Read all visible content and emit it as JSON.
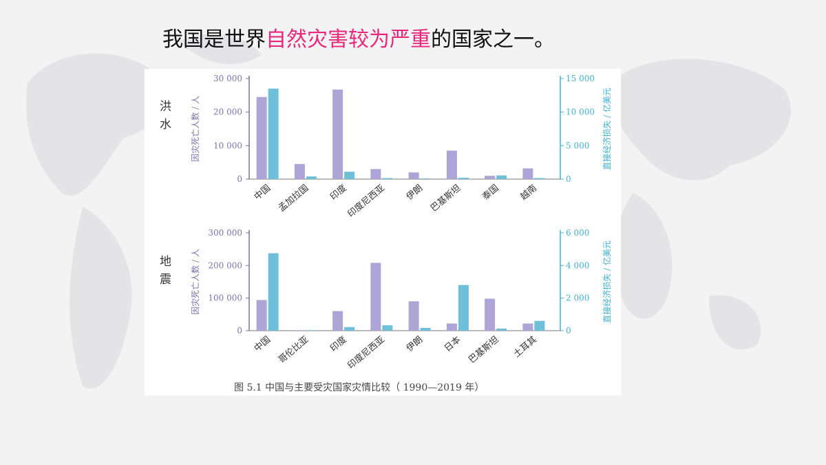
{
  "slide": {
    "title_before": "我国是世界",
    "title_highlight": "自然灾害较为严重",
    "title_after": "的国家之一。",
    "highlight_color": "#e8277a"
  },
  "figure": {
    "caption": "图 5.1    中国与主要受灾国家灾情比较（ 1990—2019 年）"
  },
  "colors": {
    "deaths": "#aea4d6",
    "losses": "#6fbfd8",
    "left_axis": "#7b72a8",
    "right_axis": "#3fb0cf"
  },
  "chart_data": [
    {
      "type": "bar",
      "panel_label": "洪水",
      "categories": [
        "中国",
        "孟加拉国",
        "印度",
        "印度尼西亚",
        "伊朗",
        "巴基斯坦",
        "泰国",
        "越南"
      ],
      "series": [
        {
          "name": "因灾死亡人数 / 人",
          "axis": "left",
          "values": [
            24500,
            4500,
            26700,
            3000,
            2000,
            8500,
            1000,
            3200
          ]
        },
        {
          "name": "直接经济损失 / 亿美元",
          "axis": "right",
          "values": [
            13500,
            400,
            1100,
            150,
            100,
            200,
            550,
            150
          ]
        }
      ],
      "ylabel": "因灾死亡人数 / 人",
      "ylabel_right": "直接经济损失 / 亿美元",
      "ylim": [
        0,
        30000
      ],
      "ylim_right": [
        0,
        15000
      ],
      "yticks": [
        "0",
        "10 000",
        "20 000",
        "30 000"
      ],
      "yticks_right": [
        "0",
        "5 000",
        "10 000",
        "15 000"
      ]
    },
    {
      "type": "bar",
      "panel_label": "地震",
      "categories": [
        "中国",
        "哥伦比亚",
        "印度",
        "印度尼西亚",
        "伊朗",
        "日本",
        "巴基斯坦",
        "土耳其"
      ],
      "series": [
        {
          "name": "因灾死亡人数 / 人",
          "axis": "left",
          "values": [
            94000,
            1500,
            60000,
            208000,
            90000,
            22000,
            98000,
            22000
          ]
        },
        {
          "name": "直接经济损失 / 亿美元",
          "axis": "right",
          "values": [
            4750,
            30,
            220,
            330,
            170,
            2800,
            130,
            600
          ]
        }
      ],
      "ylabel": "因灾死亡人数 / 人",
      "ylabel_right": "直接经济损失 / 亿美元",
      "ylim": [
        0,
        300000
      ],
      "ylim_right": [
        0,
        6000
      ],
      "yticks": [
        "0",
        "100 000",
        "200 000",
        "300 000"
      ],
      "yticks_right": [
        "0",
        "2 000",
        "4 000",
        "6 000"
      ]
    }
  ]
}
